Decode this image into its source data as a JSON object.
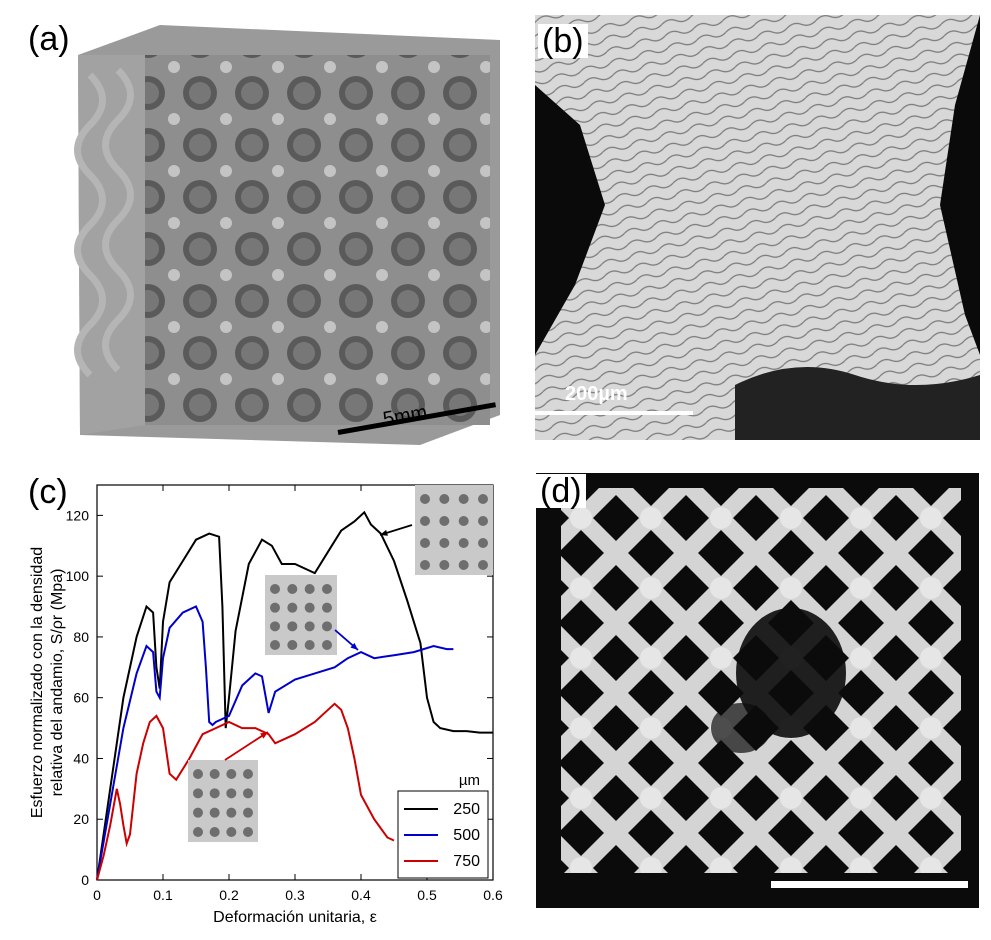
{
  "panels": {
    "a": {
      "label": "(a)",
      "scale_bar": "5mm"
    },
    "b": {
      "label": "(b)",
      "scale_bar": "200µm"
    },
    "c": {
      "label": "(c)"
    },
    "d": {
      "label": "(d)"
    }
  },
  "chart_data": {
    "type": "line",
    "xlabel": "Deformación unitaria, ε",
    "ylabel_line1": "Esfuerzo normalizado con la densidad",
    "ylabel_line2": "relativa del andamio, S/ρr (Mpa)",
    "xlim": [
      0,
      0.6
    ],
    "ylim": [
      0,
      130
    ],
    "xticks": [
      "0",
      "0.1",
      "0.2",
      "0.3",
      "0.4",
      "0.5",
      "0.6"
    ],
    "yticks": [
      "0",
      "20",
      "40",
      "60",
      "80",
      "100",
      "120"
    ],
    "legend_title": "µm",
    "legend_position": "bottom-right",
    "series": [
      {
        "name": "250",
        "color": "#000000",
        "x": [
          0,
          0.02,
          0.04,
          0.06,
          0.075,
          0.085,
          0.09,
          0.095,
          0.1,
          0.11,
          0.13,
          0.15,
          0.17,
          0.185,
          0.19,
          0.195,
          0.2,
          0.21,
          0.23,
          0.25,
          0.265,
          0.28,
          0.3,
          0.33,
          0.35,
          0.37,
          0.39,
          0.405,
          0.415,
          0.43,
          0.45,
          0.47,
          0.49,
          0.5,
          0.51,
          0.52,
          0.54,
          0.56,
          0.58,
          0.6
        ],
        "y": [
          0,
          30,
          60,
          80,
          90,
          88,
          70,
          63,
          85,
          98,
          105,
          112,
          114,
          113,
          90,
          50,
          60,
          82,
          104,
          112,
          110,
          104,
          104,
          101,
          108,
          115,
          118,
          121,
          117,
          114,
          105,
          92,
          78,
          60,
          52,
          50,
          49,
          49,
          48.5,
          48.5
        ]
      },
      {
        "name": "500",
        "color": "#0000cc",
        "x": [
          0,
          0.02,
          0.04,
          0.06,
          0.075,
          0.085,
          0.09,
          0.095,
          0.1,
          0.11,
          0.13,
          0.15,
          0.16,
          0.165,
          0.17,
          0.175,
          0.18,
          0.2,
          0.22,
          0.24,
          0.25,
          0.26,
          0.27,
          0.3,
          0.33,
          0.36,
          0.38,
          0.4,
          0.42,
          0.45,
          0.48,
          0.51,
          0.53,
          0.54
        ],
        "y": [
          0,
          25,
          50,
          68,
          77,
          75,
          62,
          60,
          73,
          83,
          88,
          90,
          85,
          70,
          52,
          51,
          52,
          54,
          64,
          68,
          67,
          55,
          62,
          66,
          68,
          70,
          73,
          75,
          73,
          74,
          75,
          77,
          76,
          76
        ]
      },
      {
        "name": "750",
        "color": "#cc0000",
        "x": [
          0,
          0.01,
          0.02,
          0.03,
          0.035,
          0.04,
          0.045,
          0.05,
          0.06,
          0.07,
          0.08,
          0.09,
          0.1,
          0.11,
          0.12,
          0.14,
          0.16,
          0.18,
          0.2,
          0.22,
          0.24,
          0.26,
          0.27,
          0.3,
          0.33,
          0.35,
          0.36,
          0.37,
          0.38,
          0.39,
          0.4,
          0.42,
          0.44,
          0.45
        ],
        "y": [
          0,
          8,
          18,
          30,
          25,
          18,
          12,
          15,
          35,
          45,
          52,
          54,
          50,
          35,
          33,
          40,
          48,
          50,
          52,
          50,
          50,
          48,
          45,
          48,
          52,
          56,
          58,
          56,
          50,
          40,
          28,
          20,
          14,
          13
        ]
      }
    ],
    "insets": [
      {
        "series": "250"
      },
      {
        "series": "500"
      },
      {
        "series": "750"
      }
    ]
  }
}
